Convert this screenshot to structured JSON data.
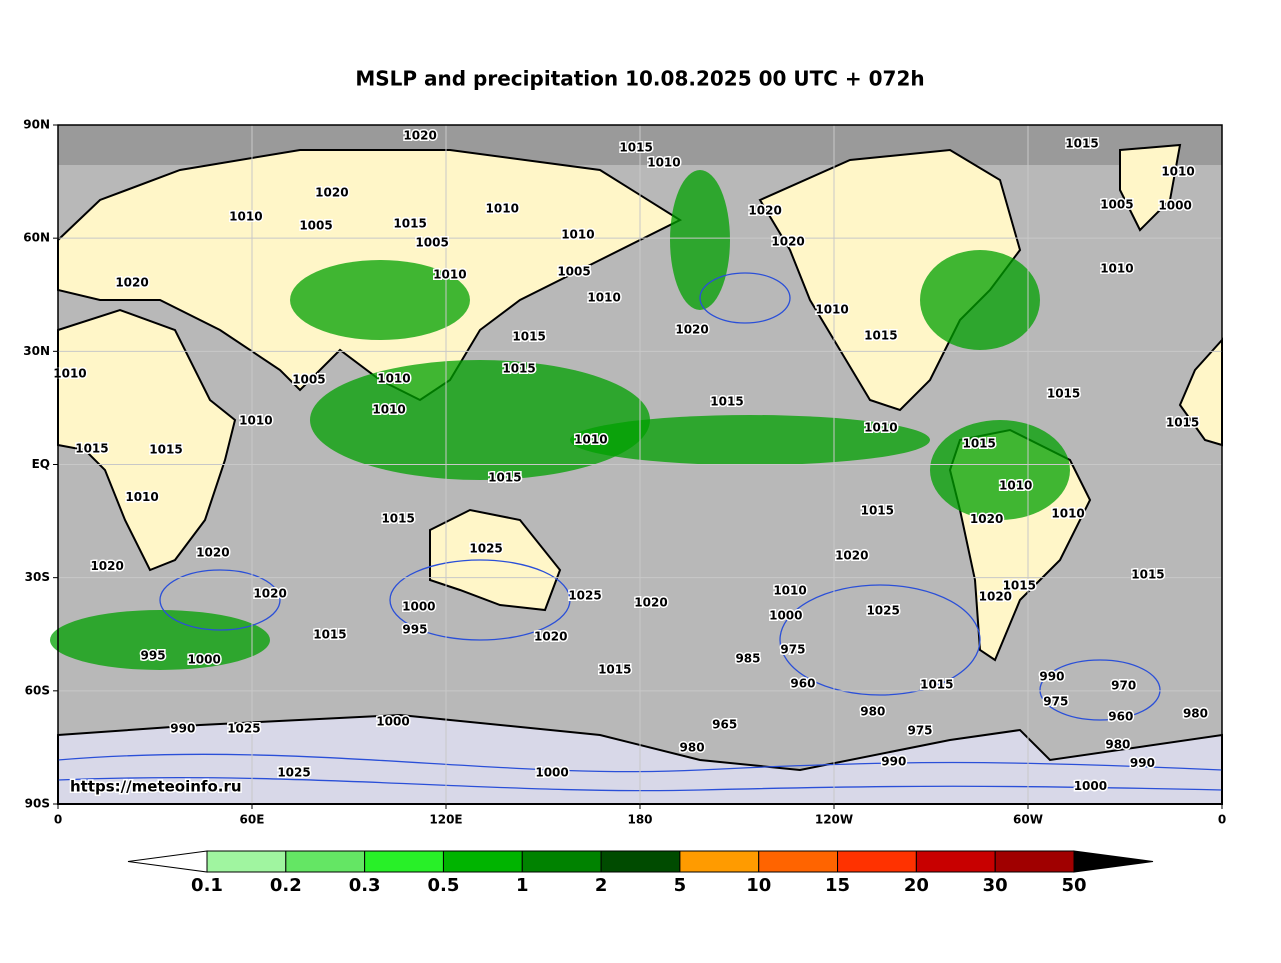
{
  "title": "MSLP and precipitation 10.08.2025 00 UTC + 072h",
  "source": "https://meteoinfo.ru",
  "map": {
    "xlim": [
      0,
      360
    ],
    "ylim": [
      -90,
      90
    ],
    "xticks": [
      0,
      {
        "value": 60,
        "label": "60E"
      },
      {
        "value": 120,
        "label": "120E"
      },
      180,
      {
        "value": 240,
        "label": "120W"
      },
      {
        "value": 300,
        "label": "60W"
      },
      {
        "value": 360,
        "label": "0"
      }
    ],
    "yticks": [
      {
        "value": 90,
        "label": "90N"
      },
      {
        "value": 60,
        "label": "60N"
      },
      {
        "value": 30,
        "label": "30N"
      },
      {
        "value": 0,
        "label": "EQ"
      },
      {
        "value": -30,
        "label": "30S"
      },
      {
        "value": -60,
        "label": "60S"
      },
      {
        "value": -90,
        "label": "90S"
      }
    ],
    "grid": true,
    "isobar_labels": [
      {
        "lon": 112,
        "lat": 87.1,
        "label": "1020"
      },
      {
        "lon": 178.8,
        "lat": 83.9,
        "label": "1015"
      },
      {
        "lon": 187.4,
        "lat": 79.9,
        "label": "1010"
      },
      {
        "lon": 316.7,
        "lat": 85,
        "label": "1015"
      },
      {
        "lon": 346.4,
        "lat": 77.5,
        "label": "1010"
      },
      {
        "lon": 84.7,
        "lat": 72,
        "label": "1020"
      },
      {
        "lon": 58.1,
        "lat": 65.6,
        "label": "1010"
      },
      {
        "lon": 79.8,
        "lat": 63.2,
        "label": "1005"
      },
      {
        "lon": 108.9,
        "lat": 63.8,
        "label": "1015"
      },
      {
        "lon": 137.4,
        "lat": 67.7,
        "label": "1010"
      },
      {
        "lon": 218.7,
        "lat": 67.2,
        "label": "1020"
      },
      {
        "lon": 327.5,
        "lat": 68.8,
        "label": "1005"
      },
      {
        "lon": 345.5,
        "lat": 68.5,
        "label": "1000"
      },
      {
        "lon": 225.8,
        "lat": 59,
        "label": "1020"
      },
      {
        "lon": 160.8,
        "lat": 60.8,
        "label": "1010"
      },
      {
        "lon": 115.7,
        "lat": 58.7,
        "label": "1005"
      },
      {
        "lon": 121.2,
        "lat": 50.2,
        "label": "1010"
      },
      {
        "lon": 159.6,
        "lat": 51,
        "label": "1005"
      },
      {
        "lon": 168.9,
        "lat": 44.1,
        "label": "1010"
      },
      {
        "lon": 22.9,
        "lat": 48.1,
        "label": "1020"
      },
      {
        "lon": 327.5,
        "lat": 51.8,
        "label": "1010"
      },
      {
        "lon": 196.1,
        "lat": 35.7,
        "label": "1020"
      },
      {
        "lon": 145.7,
        "lat": 33.8,
        "label": "1015"
      },
      {
        "lon": 239.4,
        "lat": 41,
        "label": "1010"
      },
      {
        "lon": 254.5,
        "lat": 34.1,
        "label": "1015"
      },
      {
        "lon": 142.6,
        "lat": 25.3,
        "label": "1015"
      },
      {
        "lon": 77.6,
        "lat": 22.4,
        "label": "1005"
      },
      {
        "lon": 103.9,
        "lat": 22.7,
        "label": "1010"
      },
      {
        "lon": 102.4,
        "lat": 14.4,
        "label": "1010"
      },
      {
        "lon": 61.2,
        "lat": 11.5,
        "label": "1010"
      },
      {
        "lon": 206.9,
        "lat": 16.6,
        "label": "1015"
      },
      {
        "lon": 164.8,
        "lat": 6.5,
        "label": "1010"
      },
      {
        "lon": 254.5,
        "lat": 9.7,
        "label": "1010"
      },
      {
        "lon": 284.9,
        "lat": 5.4,
        "label": "1015"
      },
      {
        "lon": 311,
        "lat": 18.7,
        "label": "1015"
      },
      {
        "lon": 347.8,
        "lat": 11,
        "label": "1015"
      },
      {
        "lon": 3.7,
        "lat": 24,
        "label": "1010"
      },
      {
        "lon": 10.5,
        "lat": 4.1,
        "label": "1015"
      },
      {
        "lon": 33.4,
        "lat": 3.9,
        "label": "1015"
      },
      {
        "lon": 26,
        "lat": -8.8,
        "label": "1010"
      },
      {
        "lon": 138.2,
        "lat": -3.6,
        "label": "1015"
      },
      {
        "lon": 105.2,
        "lat": -14.5,
        "label": "1015"
      },
      {
        "lon": 253.4,
        "lat": -12.3,
        "label": "1015"
      },
      {
        "lon": 287.2,
        "lat": -14.6,
        "label": "1020"
      },
      {
        "lon": 296.2,
        "lat": -5.7,
        "label": "1010"
      },
      {
        "lon": 312.4,
        "lat": -13.1,
        "label": "1010"
      },
      {
        "lon": 47.9,
        "lat": -23.4,
        "label": "1020"
      },
      {
        "lon": 132.4,
        "lat": -22.4,
        "label": "1025"
      },
      {
        "lon": 15.2,
        "lat": -27.1,
        "label": "1020"
      },
      {
        "lon": 245.5,
        "lat": -24.3,
        "label": "1020"
      },
      {
        "lon": 337.1,
        "lat": -29.3,
        "label": "1015"
      },
      {
        "lon": 65.6,
        "lat": -34.3,
        "label": "1020"
      },
      {
        "lon": 163,
        "lat": -34.8,
        "label": "1025"
      },
      {
        "lon": 183.4,
        "lat": -36.7,
        "label": "1020"
      },
      {
        "lon": 297.3,
        "lat": -32.2,
        "label": "1015"
      },
      {
        "lon": 289.9,
        "lat": -35.1,
        "label": "1020"
      },
      {
        "lon": 111.6,
        "lat": -37.8,
        "label": "1000"
      },
      {
        "lon": 110.4,
        "lat": -43.9,
        "label": "995"
      },
      {
        "lon": 84.1,
        "lat": -45.2,
        "label": "1015"
      },
      {
        "lon": 152.4,
        "lat": -45.7,
        "label": "1020"
      },
      {
        "lon": 255.2,
        "lat": -38.8,
        "label": "1025"
      },
      {
        "lon": 226.4,
        "lat": -33.5,
        "label": "1010"
      },
      {
        "lon": 225.1,
        "lat": -40.1,
        "label": "1000"
      },
      {
        "lon": 227.3,
        "lat": -49.2,
        "label": "975"
      },
      {
        "lon": 213.4,
        "lat": -51.5,
        "label": "985"
      },
      {
        "lon": 230.4,
        "lat": -58.2,
        "label": "960"
      },
      {
        "lon": 172.2,
        "lat": -54.5,
        "label": "1015"
      },
      {
        "lon": 271.8,
        "lat": -58.5,
        "label": "1015"
      },
      {
        "lon": 45.2,
        "lat": -51.8,
        "label": "1000"
      },
      {
        "lon": 29.4,
        "lat": -50.7,
        "label": "995"
      },
      {
        "lon": 307.4,
        "lat": -56.3,
        "label": "990"
      },
      {
        "lon": 329.6,
        "lat": -58.7,
        "label": "970"
      },
      {
        "lon": 308.6,
        "lat": -62.9,
        "label": "975"
      },
      {
        "lon": 351.8,
        "lat": -66.1,
        "label": "980"
      },
      {
        "lon": 252,
        "lat": -65.6,
        "label": "980"
      },
      {
        "lon": 266.6,
        "lat": -70.6,
        "label": "975"
      },
      {
        "lon": 206.2,
        "lat": -69,
        "label": "965"
      },
      {
        "lon": 38.6,
        "lat": -70.1,
        "label": "990"
      },
      {
        "lon": 57.5,
        "lat": -70.1,
        "label": "1025"
      },
      {
        "lon": 103.6,
        "lat": -68.2,
        "label": "1000"
      },
      {
        "lon": 196.1,
        "lat": -75.2,
        "label": "980"
      },
      {
        "lon": 258.5,
        "lat": -78.9,
        "label": "990"
      },
      {
        "lon": 335.4,
        "lat": -79.2,
        "label": "990"
      },
      {
        "lon": 73,
        "lat": -81.8,
        "label": "1025"
      },
      {
        "lon": 152.8,
        "lat": -81.8,
        "label": "1000"
      },
      {
        "lon": 319.3,
        "lat": -85.3,
        "label": "1000"
      },
      {
        "lon": 327.8,
        "lat": -74.4,
        "label": "980"
      },
      {
        "lon": 328.7,
        "lat": -66.9,
        "label": "960"
      }
    ]
  },
  "colorbar": {
    "levels": [
      0.1,
      0.2,
      0.3,
      0.5,
      1,
      2,
      5,
      10,
      15,
      20,
      30,
      50
    ],
    "colors": [
      "#a0f5a0",
      "#64e664",
      "#28f028",
      "#00b400",
      "#008200",
      "#004b00",
      "#ff9b00",
      "#ff6400",
      "#ff3200",
      "#c80000",
      "#a00000"
    ],
    "under": "#ffffff",
    "over": "#000000"
  }
}
